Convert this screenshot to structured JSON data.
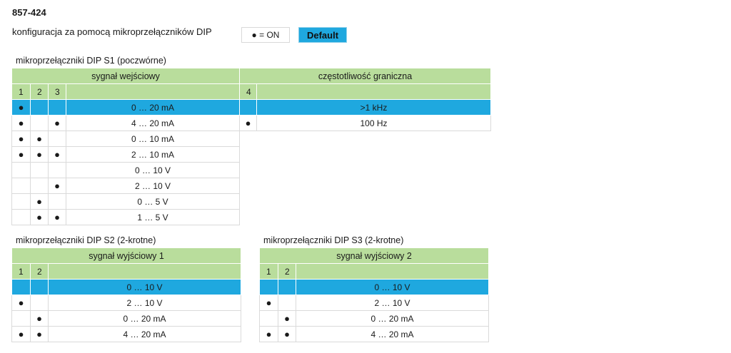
{
  "header": {
    "title": "857-424",
    "subtitle": "konfiguracja za pomocą mikroprzełączników DIP",
    "legend": "● = ON",
    "default_label": "Default"
  },
  "s1": {
    "caption": "mikroprzełączniki DIP S1 (poczwórne)",
    "group_input": "sygnał wejściowy",
    "group_freq": "częstotliwość graniczna",
    "col1": "1",
    "col2": "2",
    "col3": "3",
    "col4": "4",
    "rows": [
      {
        "c1": "●",
        "c2": "",
        "c3": "",
        "value": "0 … 20 mA"
      },
      {
        "c1": "●",
        "c2": "",
        "c3": "●",
        "value": "4 … 20 mA"
      },
      {
        "c1": "●",
        "c2": "●",
        "c3": "",
        "value": "0 … 10 mA"
      },
      {
        "c1": "●",
        "c2": "●",
        "c3": "●",
        "value": "2 … 10 mA"
      },
      {
        "c1": "",
        "c2": "",
        "c3": "",
        "value": "0 … 10 V"
      },
      {
        "c1": "",
        "c2": "",
        "c3": "●",
        "value": "2 … 10 V"
      },
      {
        "c1": "",
        "c2": "●",
        "c3": "",
        "value": "0 … 5 V"
      },
      {
        "c1": "",
        "c2": "●",
        "c3": "●",
        "value": "1 … 5 V"
      }
    ],
    "freq_rows": [
      {
        "c4": "",
        "value": ">1 kHz"
      },
      {
        "c4": "●",
        "value": "100 Hz"
      }
    ]
  },
  "s2": {
    "caption": "mikroprzełączniki DIP S2 (2-krotne)",
    "group": "sygnał wyjściowy 1",
    "col1": "1",
    "col2": "2",
    "rows": [
      {
        "c1": "",
        "c2": "",
        "value": "0 … 10 V"
      },
      {
        "c1": "●",
        "c2": "",
        "value": "2 … 10 V"
      },
      {
        "c1": "",
        "c2": "●",
        "value": "0 … 20 mA"
      },
      {
        "c1": "●",
        "c2": "●",
        "value": "4 … 20 mA"
      }
    ]
  },
  "s3": {
    "caption": "mikroprzełączniki DIP S3 (2-krotne)",
    "group": "sygnał wyjściowy 2",
    "col1": "1",
    "col2": "2",
    "rows": [
      {
        "c1": "",
        "c2": "",
        "value": "0 … 10 V"
      },
      {
        "c1": "●",
        "c2": "",
        "value": "2 … 10 V"
      },
      {
        "c1": "",
        "c2": "●",
        "value": "0 … 20 mA"
      },
      {
        "c1": "●",
        "c2": "●",
        "value": "4 … 20 mA"
      }
    ]
  }
}
